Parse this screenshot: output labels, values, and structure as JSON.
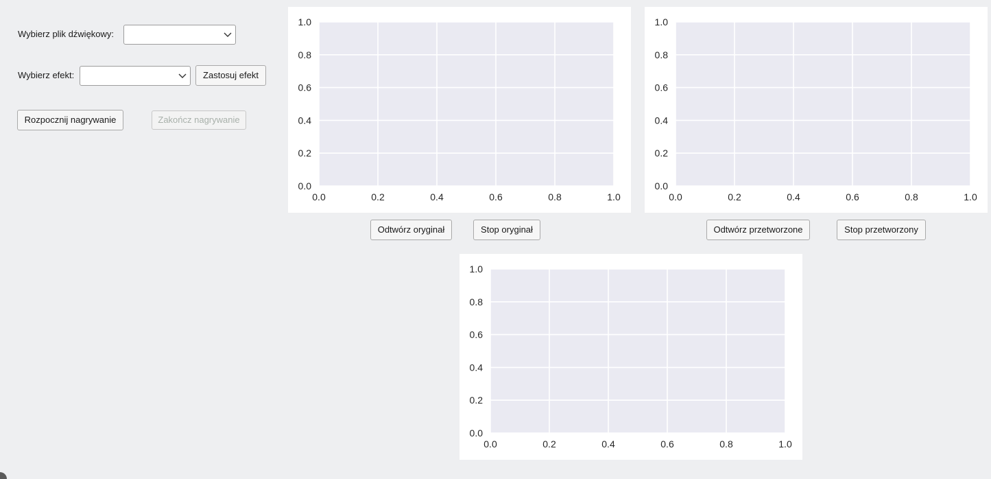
{
  "controls": {
    "file_label": "Wybierz plik dźwiękowy:",
    "file_select_value": "",
    "effect_label": "Wybierz efekt:",
    "effect_select_value": "",
    "apply_effect_button": "Zastosuj efekt",
    "start_recording_button": "Rozpocznij nagrywanie",
    "stop_recording_button": "Zakończ nagrywanie"
  },
  "playback": {
    "play_original": "Odtwórz oryginał",
    "stop_original": "Stop oryginał",
    "play_processed": "Odtwórz przetworzone",
    "stop_processed": "Stop przetworzony"
  },
  "colors": {
    "plot_background": "#eaeaf2",
    "grid": "#ffffff",
    "tick_text": "#262626",
    "window_background": "#eeeff1"
  },
  "chart_data": [
    {
      "type": "line",
      "series": [],
      "xlim": [
        0.0,
        1.0
      ],
      "ylim": [
        0.0,
        1.0
      ],
      "xticks": [
        "0.0",
        "0.2",
        "0.4",
        "0.6",
        "0.8",
        "1.0"
      ],
      "yticks": [
        "0.0",
        "0.2",
        "0.4",
        "0.6",
        "0.8",
        "1.0"
      ],
      "grid": true
    },
    {
      "type": "line",
      "series": [],
      "xlim": [
        0.0,
        1.0
      ],
      "ylim": [
        0.0,
        1.0
      ],
      "xticks": [
        "0.0",
        "0.2",
        "0.4",
        "0.6",
        "0.8",
        "1.0"
      ],
      "yticks": [
        "0.0",
        "0.2",
        "0.4",
        "0.6",
        "0.8",
        "1.0"
      ],
      "grid": true
    },
    {
      "type": "line",
      "series": [],
      "xlim": [
        0.0,
        1.0
      ],
      "ylim": [
        0.0,
        1.0
      ],
      "xticks": [
        "0.0",
        "0.2",
        "0.4",
        "0.6",
        "0.8",
        "1.0"
      ],
      "yticks": [
        "0.0",
        "0.2",
        "0.4",
        "0.6",
        "0.8",
        "1.0"
      ],
      "grid": true
    }
  ]
}
